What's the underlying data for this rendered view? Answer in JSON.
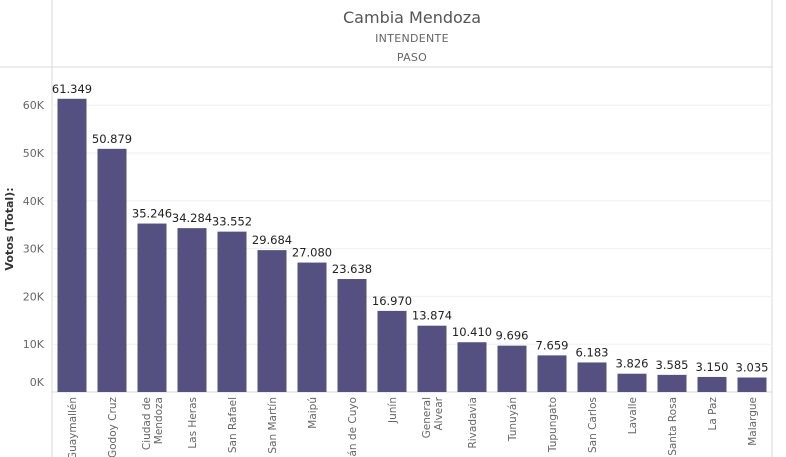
{
  "chart_data": {
    "type": "bar",
    "title": "Cambia Mendoza",
    "subtitles": [
      "INTENDENTE",
      "PASO"
    ],
    "ylabel": "Votos (Total):",
    "ylim": [
      0,
      68000
    ],
    "yticks": [
      {
        "value": 0,
        "label": "0K"
      },
      {
        "value": 10000,
        "label": "10K"
      },
      {
        "value": 20000,
        "label": "20K"
      },
      {
        "value": 30000,
        "label": "30K"
      },
      {
        "value": 40000,
        "label": "40K"
      },
      {
        "value": 50000,
        "label": "50K"
      },
      {
        "value": 60000,
        "label": "60K"
      }
    ],
    "bar_color": "#545080",
    "categories": [
      [
        "Guaymallén"
      ],
      [
        "Godoy Cruz"
      ],
      [
        "Ciudad de",
        "Mendoza"
      ],
      [
        "Las Heras"
      ],
      [
        "San Rafael"
      ],
      [
        "San Martín"
      ],
      [
        "Maipú"
      ],
      [
        "Luján de Cuyo"
      ],
      [
        "Junín"
      ],
      [
        "General",
        "Alvear"
      ],
      [
        "Rivadavia"
      ],
      [
        "Tunuyán"
      ],
      [
        "Tupungato"
      ],
      [
        "San Carlos"
      ],
      [
        "Lavalle"
      ],
      [
        "Santa Rosa"
      ],
      [
        "La Paz"
      ],
      [
        "Malargue"
      ]
    ],
    "values": [
      61349,
      50879,
      35246,
      34284,
      33552,
      29684,
      27080,
      23638,
      16970,
      13874,
      10410,
      9696,
      7659,
      6183,
      3826,
      3585,
      3150,
      3035
    ],
    "value_labels": [
      "61.349",
      "50.879",
      "35.246",
      "34.284",
      "33.552",
      "29.684",
      "27.080",
      "23.638",
      "16.970",
      "13.874",
      "10.410",
      "9.696",
      "7.659",
      "6.183",
      "3.826",
      "3.585",
      "3.150",
      "3.035"
    ],
    "grid": true
  }
}
